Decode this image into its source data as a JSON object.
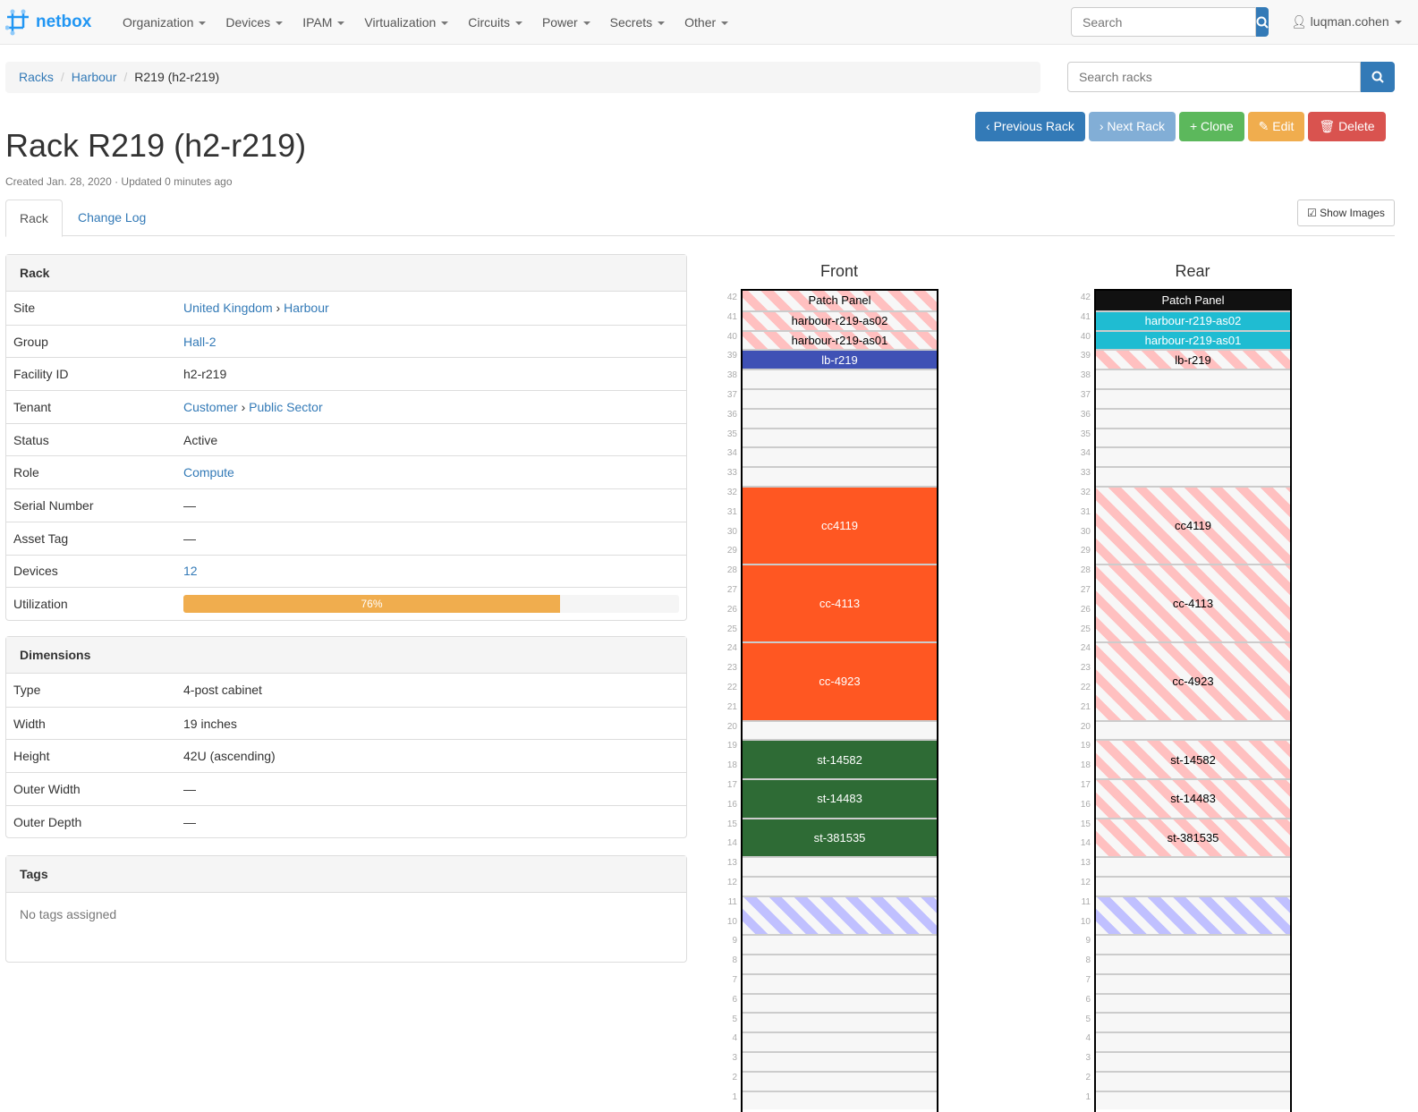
{
  "nav": {
    "brand": "netbox",
    "menu": [
      "Organization",
      "Devices",
      "IPAM",
      "Virtualization",
      "Circuits",
      "Power",
      "Secrets",
      "Other"
    ],
    "search_placeholder": "Search",
    "user": "luqman.cohen"
  },
  "breadcrumb": [
    "Racks",
    "Harbour",
    "R219 (h2-r219)"
  ],
  "rack_search_placeholder": "Search racks",
  "buttons": [
    {
      "label": "Previous Rack",
      "icon": "‹",
      "color": "#337ab7"
    },
    {
      "label": "Next Rack",
      "icon": "›",
      "color": "#82aed6"
    },
    {
      "label": "Clone",
      "icon": "+",
      "color": "#5cb85c"
    },
    {
      "label": "Edit",
      "icon": "✎",
      "color": "#f0ad4e"
    },
    {
      "label": "Delete",
      "icon": "🗑",
      "color": "#d9534f"
    }
  ],
  "title": "Rack R219 (h2-r219)",
  "meta": "Created Jan. 28, 2020 · Updated 0 minutes ago",
  "tabs": [
    "Rack",
    "Change Log"
  ],
  "show_images": "Show Images",
  "rack_panel": {
    "title": "Rack",
    "rows": [
      {
        "k": "Site",
        "v": [
          {
            "t": "United Kingdom",
            "link": true
          },
          {
            "t": " › "
          },
          {
            "t": "Harbour",
            "link": true
          }
        ]
      },
      {
        "k": "Group",
        "v": [
          {
            "t": "Hall-2",
            "link": true
          }
        ]
      },
      {
        "k": "Facility ID",
        "v": [
          {
            "t": "h2-r219"
          }
        ]
      },
      {
        "k": "Tenant",
        "v": [
          {
            "t": "Customer",
            "link": true
          },
          {
            "t": " › "
          },
          {
            "t": "Public Sector",
            "link": true
          }
        ]
      },
      {
        "k": "Status",
        "v": [
          {
            "t": "Active"
          }
        ]
      },
      {
        "k": "Role",
        "v": [
          {
            "t": "Compute",
            "link": true
          }
        ]
      },
      {
        "k": "Serial Number",
        "v": [
          {
            "t": "—"
          }
        ]
      },
      {
        "k": "Asset Tag",
        "v": [
          {
            "t": "—"
          }
        ]
      },
      {
        "k": "Devices",
        "v": [
          {
            "t": "12",
            "link": true
          }
        ]
      }
    ],
    "utilization_label": "Utilization",
    "utilization": 76,
    "utilization_text": "76%"
  },
  "dimensions": {
    "title": "Dimensions",
    "rows": [
      {
        "k": "Type",
        "v": "4-post cabinet"
      },
      {
        "k": "Width",
        "v": "19 inches"
      },
      {
        "k": "Height",
        "v": "42U (ascending)"
      },
      {
        "k": "Outer Width",
        "v": "—"
      },
      {
        "k": "Outer Depth",
        "v": "—"
      }
    ]
  },
  "tags": {
    "title": "Tags",
    "empty": "No tags assigned"
  },
  "elevations": {
    "units": 42,
    "front": {
      "title": "Front",
      "devices": [
        {
          "name": "Patch Panel",
          "top": 42,
          "h": 1,
          "style": "stripe-red"
        },
        {
          "name": "harbour-r219-as02",
          "top": 41,
          "h": 1,
          "style": "stripe-red"
        },
        {
          "name": "harbour-r219-as01",
          "top": 40,
          "h": 1,
          "style": "stripe-red"
        },
        {
          "name": "lb-r219",
          "top": 39,
          "h": 1,
          "color": "#3f51b5"
        },
        {
          "name": "cc4119",
          "top": 32,
          "h": 4,
          "color": "#ff5722"
        },
        {
          "name": "cc-4113",
          "top": 28,
          "h": 4,
          "color": "#ff5722"
        },
        {
          "name": "cc-4923",
          "top": 24,
          "h": 4,
          "color": "#ff5722"
        },
        {
          "name": "st-14582",
          "top": 19,
          "h": 2,
          "color": "#2e6b35"
        },
        {
          "name": "st-14483",
          "top": 17,
          "h": 2,
          "color": "#2e6b35"
        },
        {
          "name": "st-381535",
          "top": 15,
          "h": 2,
          "color": "#2e6b35"
        },
        {
          "name": "",
          "top": 11,
          "h": 2,
          "style": "stripe-blue"
        }
      ]
    },
    "rear": {
      "title": "Rear",
      "devices": [
        {
          "name": "Patch Panel",
          "top": 42,
          "h": 1,
          "color": "#111111"
        },
        {
          "name": "harbour-r219-as02",
          "top": 41,
          "h": 1,
          "color": "#1fbcd2"
        },
        {
          "name": "harbour-r219-as01",
          "top": 40,
          "h": 1,
          "color": "#1fbcd2"
        },
        {
          "name": "lb-r219",
          "top": 39,
          "h": 1,
          "style": "stripe-red"
        },
        {
          "name": "cc4119",
          "top": 32,
          "h": 4,
          "style": "stripe-red"
        },
        {
          "name": "cc-4113",
          "top": 28,
          "h": 4,
          "style": "stripe-red"
        },
        {
          "name": "cc-4923",
          "top": 24,
          "h": 4,
          "style": "stripe-red"
        },
        {
          "name": "st-14582",
          "top": 19,
          "h": 2,
          "style": "stripe-red"
        },
        {
          "name": "st-14483",
          "top": 17,
          "h": 2,
          "style": "stripe-red"
        },
        {
          "name": "st-381535",
          "top": 15,
          "h": 2,
          "style": "stripe-red"
        },
        {
          "name": "",
          "top": 11,
          "h": 2,
          "style": "stripe-blue"
        }
      ]
    }
  }
}
